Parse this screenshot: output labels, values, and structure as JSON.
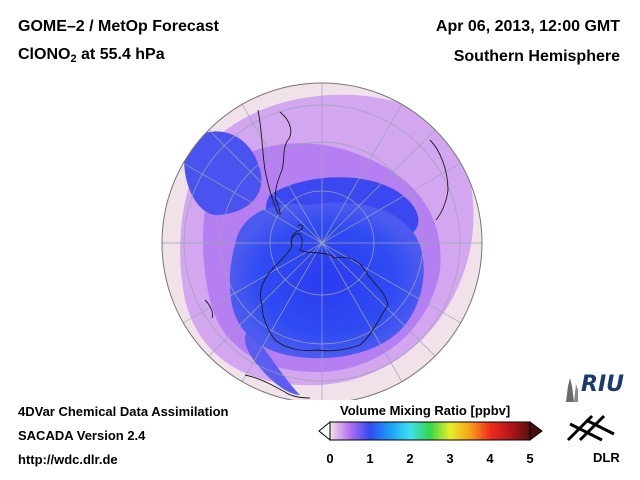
{
  "header": {
    "title_line1": "GOME–2 / MetOp Forecast",
    "species_prefix": "ClONO",
    "species_sub": "2",
    "species_suffix": " at 55.4 hPa",
    "date": "Apr 06, 2013, 12:00 GMT",
    "region": "Southern Hemisphere"
  },
  "footer": {
    "line1": "4DVar Chemical Data Assimilation",
    "line2": "SACADA Version 2.4",
    "line3": "http://wdc.dlr.de"
  },
  "colorbar": {
    "title": "Volume Mixing Ratio [ppbv]",
    "ticks": [
      "0",
      "1",
      "2",
      "3",
      "4",
      "5"
    ],
    "min": 0,
    "max": 5,
    "colors": [
      "#f2e2e8",
      "#b36ff0",
      "#2f4bf0",
      "#1c9ef6",
      "#3fe0ef",
      "#35d64a",
      "#e7ef2a",
      "#f7a11b",
      "#ef2d1d",
      "#b51717",
      "#5a1010"
    ]
  },
  "logos": {
    "riu": "RIU",
    "dlr": "DLR"
  },
  "map": {
    "projection": "orthographic",
    "hemisphere": "south",
    "background_color": "#f1e3e8",
    "low_color": "#2f43ef",
    "mid_color": "#b47ef0"
  }
}
